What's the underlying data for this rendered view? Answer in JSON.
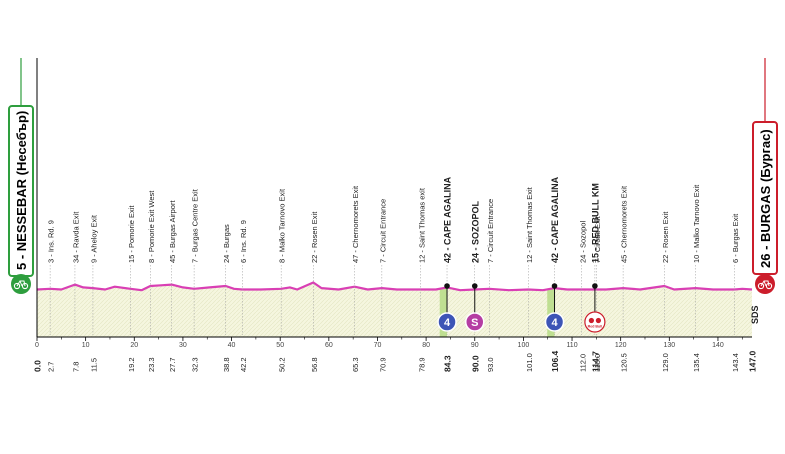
{
  "start": {
    "label": "5 - NESSEBAR (Несебър)",
    "color": "#2e9e3e"
  },
  "finish": {
    "label": "26 - BURGAS (Бургас)",
    "color": "#cc1d2b"
  },
  "brand_mark": "SDS",
  "colors": {
    "profile": "#d93fb4",
    "fill": "#f5f6df",
    "sprint": "#b9dd8a",
    "kom": "#3d55b6",
    "sprint_badge": "#b53ea3"
  },
  "chart_data": {
    "type": "area",
    "xlim": [
      0,
      147
    ],
    "x_ticks": [
      0,
      10,
      20,
      30,
      40,
      50,
      60,
      70,
      80,
      90,
      100,
      110,
      120,
      130,
      140
    ],
    "x_tick_labels": [
      "0",
      "10",
      "20",
      "30",
      "40",
      "50",
      "60",
      "70",
      "80",
      "90",
      "100",
      "110",
      "120",
      "130",
      "140"
    ],
    "profile": {
      "x": [
        0,
        2.7,
        5,
        7.8,
        9.5,
        11.5,
        14,
        16,
        19.2,
        21.5,
        23.3,
        25.5,
        27.7,
        30,
        32.3,
        35.5,
        38.8,
        40.5,
        42.2,
        46,
        50.2,
        52,
        53.5,
        56.8,
        58.5,
        62,
        65.3,
        68,
        70.9,
        74,
        78.9,
        82,
        84.3,
        87,
        90,
        93,
        97,
        101,
        104,
        106.4,
        109,
        112,
        114.7,
        117,
        120.5,
        124,
        129,
        131,
        135.4,
        139,
        143.4,
        145,
        147
      ],
      "y": [
        5,
        6,
        5,
        12,
        8,
        7,
        5,
        9,
        6,
        4,
        10,
        11,
        12,
        8,
        6,
        8,
        10,
        6,
        5,
        5,
        6,
        8,
        5,
        15,
        7,
        5,
        9,
        5,
        7,
        5,
        5,
        5,
        8,
        4,
        5,
        6,
        4,
        5,
        4,
        7,
        5,
        5,
        5,
        5,
        7,
        5,
        10,
        5,
        7,
        5,
        5,
        6,
        5
      ]
    },
    "waypoints": [
      {
        "km": "2.7",
        "label": "3 - Ins. Rd. 9"
      },
      {
        "km": "7.8",
        "label": "34 - Ravda Exit"
      },
      {
        "km": "11.5",
        "label": "9 - Aheloy Exit"
      },
      {
        "km": "19.2",
        "label": "15 - Pomorie Exit"
      },
      {
        "km": "23.3",
        "label": "8 - Pomorie Exit West"
      },
      {
        "km": "27.7",
        "label": "45 - Burgas Airport"
      },
      {
        "km": "32.3",
        "label": "7 - Burgas Centre Exit"
      },
      {
        "km": "38.8",
        "label": "24 - Burgas"
      },
      {
        "km": "42.2",
        "label": "6 - Ins. Rd. 9"
      },
      {
        "km": "50.2",
        "label": "8 - Malko Tarnovo Exit"
      },
      {
        "km": "56.8",
        "label": "22 - Rosen Exit"
      },
      {
        "km": "65.3",
        "label": "47 - Chernomorets Exit"
      },
      {
        "km": "70.9",
        "label": "7 - Circuit Entrance"
      },
      {
        "km": "78.9",
        "label": "12 - Saint Thomas exit"
      },
      {
        "km": "84.3",
        "label": "42 - CAPE AGALINA",
        "bold": true
      },
      {
        "km": "90.0",
        "label": "24 - SOZOPOL",
        "bold": true
      },
      {
        "km": "93.0",
        "label": "7 - Circuit Entrance"
      },
      {
        "km": "101.0",
        "label": "12 - Saint Thomas Exit"
      },
      {
        "km": "106.4",
        "label": "42 - CAPE AGALINA",
        "bold": true
      },
      {
        "km": "112.0",
        "label": "24 - Sozopol"
      },
      {
        "km": "114.7",
        "label": "15 - RED BULL KM",
        "bold": true
      },
      {
        "km": "115.0",
        "label": "7 - Circuit Exit"
      },
      {
        "km": "120.5",
        "label": "45 - Chernomorets Exit"
      },
      {
        "km": "129.0",
        "label": "22 - Rosen Exit"
      },
      {
        "km": "135.4",
        "label": "10 - Malko Tarnovo Exit"
      },
      {
        "km": "143.4",
        "label": "6 - Burgas Exit"
      },
      {
        "km": "147.0",
        "label": "",
        "bold": true
      }
    ],
    "bottom_km_labels": [
      {
        "km": "0.0",
        "bold": true
      },
      {
        "km": "2.7"
      },
      {
        "km": "7.8"
      },
      {
        "km": "11.5"
      },
      {
        "km": "19.2"
      },
      {
        "km": "23.3"
      },
      {
        "km": "27.7"
      },
      {
        "km": "32.3"
      },
      {
        "km": "38.8"
      },
      {
        "km": "42.2"
      },
      {
        "km": "50.2"
      },
      {
        "km": "56.8"
      },
      {
        "km": "65.3"
      },
      {
        "km": "70.9"
      },
      {
        "km": "78.9"
      },
      {
        "km": "84.3",
        "bold": true
      },
      {
        "km": "90.0",
        "bold": true
      },
      {
        "km": "93.0"
      },
      {
        "km": "101.0"
      },
      {
        "km": "106.4",
        "bold": true
      },
      {
        "km": "112.0"
      },
      {
        "km": "114.7",
        "bold": true
      },
      {
        "km": "115.0"
      },
      {
        "km": "120.5"
      },
      {
        "km": "129.0"
      },
      {
        "km": "135.4"
      },
      {
        "km": "143.4"
      },
      {
        "km": "147.0",
        "bold": true
      }
    ],
    "markers": [
      {
        "km": 84.3,
        "type": "kom",
        "value": "4"
      },
      {
        "km": 90.0,
        "type": "sprint",
        "value": "S"
      },
      {
        "km": 106.4,
        "type": "kom",
        "value": "4"
      },
      {
        "km": 114.7,
        "type": "redbull",
        "value": "Red Bull"
      }
    ],
    "kom_bands": [
      {
        "start": 82.8,
        "end": 84.3
      },
      {
        "start": 104.9,
        "end": 106.4
      }
    ],
    "points": [
      {
        "km": 84.3
      },
      {
        "km": 90.0
      },
      {
        "km": 106.4
      },
      {
        "km": 114.7
      }
    ]
  }
}
